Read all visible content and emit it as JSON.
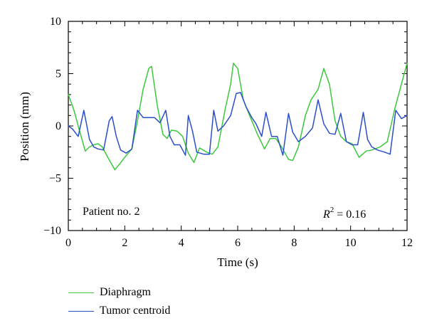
{
  "chart_data": {
    "type": "line",
    "xlabel": "Time (s)",
    "ylabel": "Position (mm)",
    "xlim": [
      0,
      12
    ],
    "ylim": [
      -10,
      10
    ],
    "xticks": [
      0,
      2,
      4,
      6,
      8,
      10,
      12
    ],
    "xtick_labels": [
      "0",
      "2",
      "4",
      "6",
      "8",
      "10",
      "12"
    ],
    "yticks": [
      10,
      5,
      0,
      -5,
      -10
    ],
    "ytick_labels": [
      "10",
      "5",
      "0",
      "−5",
      "−10"
    ],
    "grid": false,
    "legend_placement": "bottom-left, below plot",
    "annotations": {
      "patient": "Patient no. 2",
      "r2_symbol": "R",
      "r2_exponent": "2",
      "r2_value": " = 0.16"
    },
    "series": [
      {
        "name": "Diaphragm",
        "color": "#3cc83c",
        "x": [
          0,
          0.2,
          0.4,
          0.6,
          0.75,
          0.9,
          1.05,
          1.2,
          1.4,
          1.65,
          1.8,
          2.0,
          2.25,
          2.45,
          2.65,
          2.85,
          2.95,
          3.15,
          3.35,
          3.5,
          3.65,
          3.85,
          4.05,
          4.25,
          4.45,
          4.65,
          4.9,
          5.1,
          5.3,
          5.55,
          5.75,
          5.85,
          6.0,
          6.2,
          6.45,
          6.7,
          6.95,
          7.15,
          7.35,
          7.55,
          7.8,
          7.95,
          8.15,
          8.4,
          8.6,
          8.85,
          9.05,
          9.25,
          9.45,
          9.65,
          9.85,
          10.05,
          10.3,
          10.55,
          10.75,
          11.05,
          11.3,
          11.55,
          11.75,
          12.0
        ],
        "values": [
          3.0,
          1.5,
          -0.5,
          -2.4,
          -2.0,
          -1.8,
          -1.7,
          -2.0,
          -3.0,
          -4.2,
          -3.7,
          -3.0,
          -2.2,
          0.5,
          3.5,
          5.5,
          5.7,
          2.0,
          -0.8,
          -1.2,
          -0.4,
          -0.5,
          -1.0,
          -2.6,
          -3.5,
          -2.1,
          -2.5,
          -2.7,
          -2.0,
          1.5,
          4.0,
          6.0,
          5.5,
          2.5,
          0.8,
          -0.8,
          -2.2,
          -1.2,
          -1.2,
          -2.0,
          -3.2,
          -3.3,
          -2.0,
          1.0,
          2.5,
          3.5,
          5.5,
          4.0,
          0.5,
          -1.0,
          -1.5,
          -1.7,
          -3.0,
          -2.4,
          -2.3,
          -2.0,
          -1.5,
          1.5,
          3.5,
          6.0
        ]
      },
      {
        "name": "Tumor centroid",
        "color": "#2b4fc8",
        "x": [
          0,
          0.15,
          0.35,
          0.55,
          0.75,
          0.9,
          1.05,
          1.25,
          1.45,
          1.55,
          1.7,
          1.85,
          2.05,
          2.25,
          2.45,
          2.65,
          2.85,
          3.05,
          3.25,
          3.45,
          3.6,
          3.75,
          3.95,
          4.15,
          4.25,
          4.4,
          4.55,
          4.8,
          5.0,
          5.15,
          5.3,
          5.5,
          5.75,
          5.95,
          6.1,
          6.3,
          6.5,
          6.65,
          6.85,
          7.0,
          7.2,
          7.4,
          7.6,
          7.8,
          7.95,
          8.15,
          8.4,
          8.65,
          8.85,
          9.05,
          9.25,
          9.45,
          9.65,
          9.85,
          10.05,
          10.25,
          10.45,
          10.6,
          10.75,
          10.95,
          11.2,
          11.4,
          11.6,
          11.8,
          12.0
        ],
        "values": [
          0.0,
          -0.3,
          -1.0,
          1.5,
          -1.3,
          -2.0,
          -2.2,
          -2.3,
          0.5,
          0.9,
          -1.0,
          -2.3,
          -2.6,
          -2.2,
          1.5,
          0.8,
          0.8,
          0.8,
          0.3,
          1.5,
          -1.0,
          -1.8,
          -1.8,
          -2.8,
          1.0,
          -0.5,
          -2.5,
          -2.7,
          -2.7,
          1.5,
          -0.5,
          0.0,
          1.0,
          3.1,
          3.2,
          1.8,
          0.8,
          0.2,
          -1.0,
          1.3,
          -1.0,
          -1.0,
          -2.8,
          1.2,
          -0.6,
          -1.5,
          -1.0,
          -0.2,
          2.5,
          0.2,
          -0.7,
          -0.8,
          1.2,
          -1.5,
          -1.8,
          -1.8,
          1.3,
          -1.3,
          -2.0,
          -2.3,
          -2.5,
          -2.7,
          1.5,
          0.7,
          1.0
        ]
      }
    ]
  }
}
